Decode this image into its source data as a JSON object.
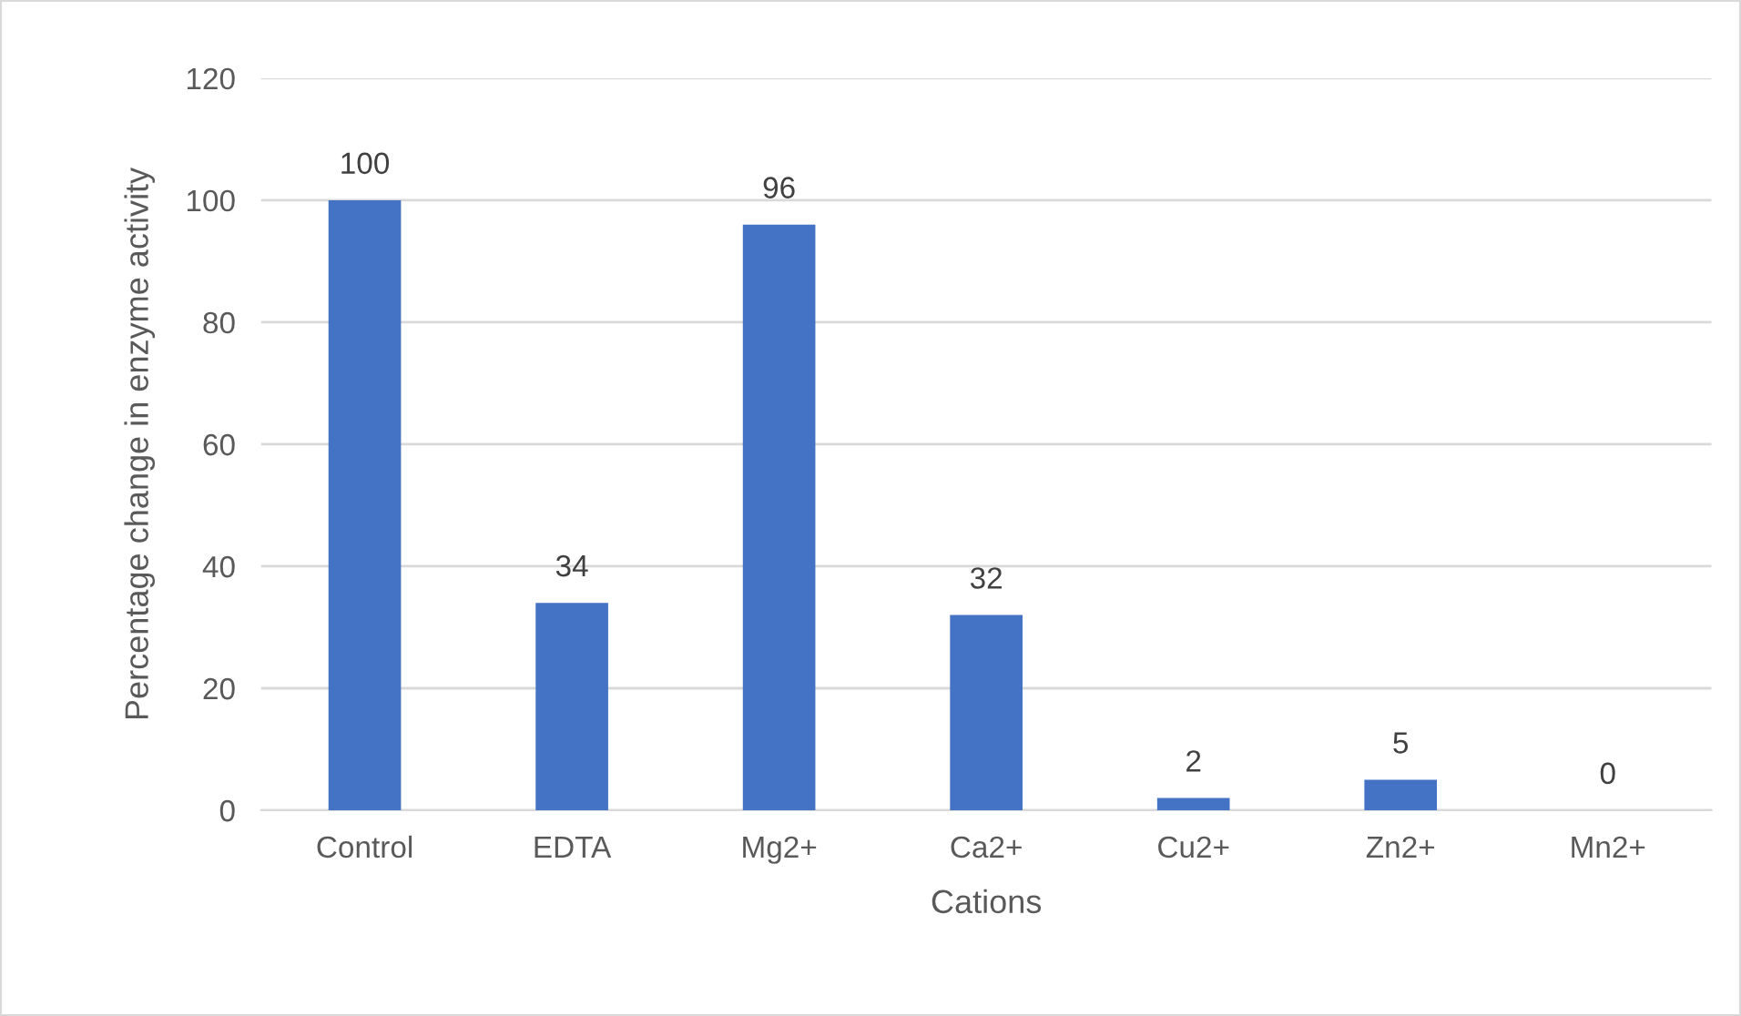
{
  "chart_data": {
    "type": "bar",
    "xlabel": "Cations",
    "ylabel": "Percentage change in enzyme activity",
    "categories": [
      "Control",
      "EDTA",
      "Mg2+",
      "Ca2+",
      "Cu2+",
      "Zn2+",
      "Mn2+"
    ],
    "values": [
      100,
      34,
      96,
      32,
      2,
      5,
      0
    ],
    "color": "#4472c4",
    "ylim": [
      0,
      120
    ],
    "yticks": [
      0,
      20,
      40,
      60,
      80,
      100,
      120
    ],
    "grid": "y",
    "data_labels": true
  }
}
